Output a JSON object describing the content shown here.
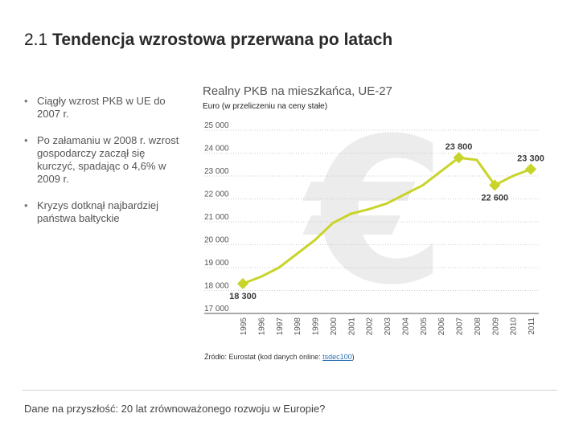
{
  "slide": {
    "title_number": "2.1",
    "title_text": "Tendencja wzrostowa przerwana po latach",
    "bullets": [
      "Ciągły wzrost PKB w UE do 2007 r.",
      "Po załamaniu w 2008 r. wzrost gospodarczy zaczął się kurczyć, spadając o 4,6% w 2009 r.",
      "Kryzys dotknął najbardziej państwa bałtyckie"
    ],
    "source_prefix": "Źródło: Eurostat (kod danych online: ",
    "source_code": "tsdec100",
    "source_suffix": ")",
    "footer": "Dane na przyszłość: 20 lat zrównoważonego rozwoju w Europie?"
  },
  "colors": {
    "line": "#c8d42a",
    "grid": "#bbbbbb",
    "euro_watermark": "#ececec"
  },
  "chart_data": {
    "type": "line",
    "title": "Realny PKB na mieszkańca, UE-27",
    "subtitle": "Euro (w przeliczeniu na ceny stałe)",
    "xlabel": "",
    "ylabel": "",
    "x": [
      "1995",
      "1996",
      "1997",
      "1998",
      "1999",
      "2000",
      "2001",
      "2002",
      "2003",
      "2004",
      "2005",
      "2006",
      "2007",
      "2008",
      "2009",
      "2010",
      "2011"
    ],
    "values": [
      18300,
      18600,
      19000,
      19600,
      20200,
      20950,
      21350,
      21550,
      21800,
      22200,
      22600,
      23200,
      23800,
      23700,
      22600,
      23000,
      23300
    ],
    "ylim": [
      17000,
      25000
    ],
    "yticks": [
      17000,
      18000,
      19000,
      20000,
      21000,
      22000,
      23000,
      24000,
      25000
    ],
    "ytick_labels": [
      "17 000",
      "18 000",
      "19 000",
      "20 000",
      "21 000",
      "22 000",
      "23 000",
      "24 000",
      "25 000"
    ],
    "markers": [
      {
        "year": "1995",
        "label": "18 300"
      },
      {
        "year": "2007",
        "label": "23 800"
      },
      {
        "year": "2009",
        "label": "22 600"
      },
      {
        "year": "2011",
        "label": "23 300"
      }
    ],
    "watermark_symbol": "€",
    "grid": "horizontal-dotted"
  }
}
